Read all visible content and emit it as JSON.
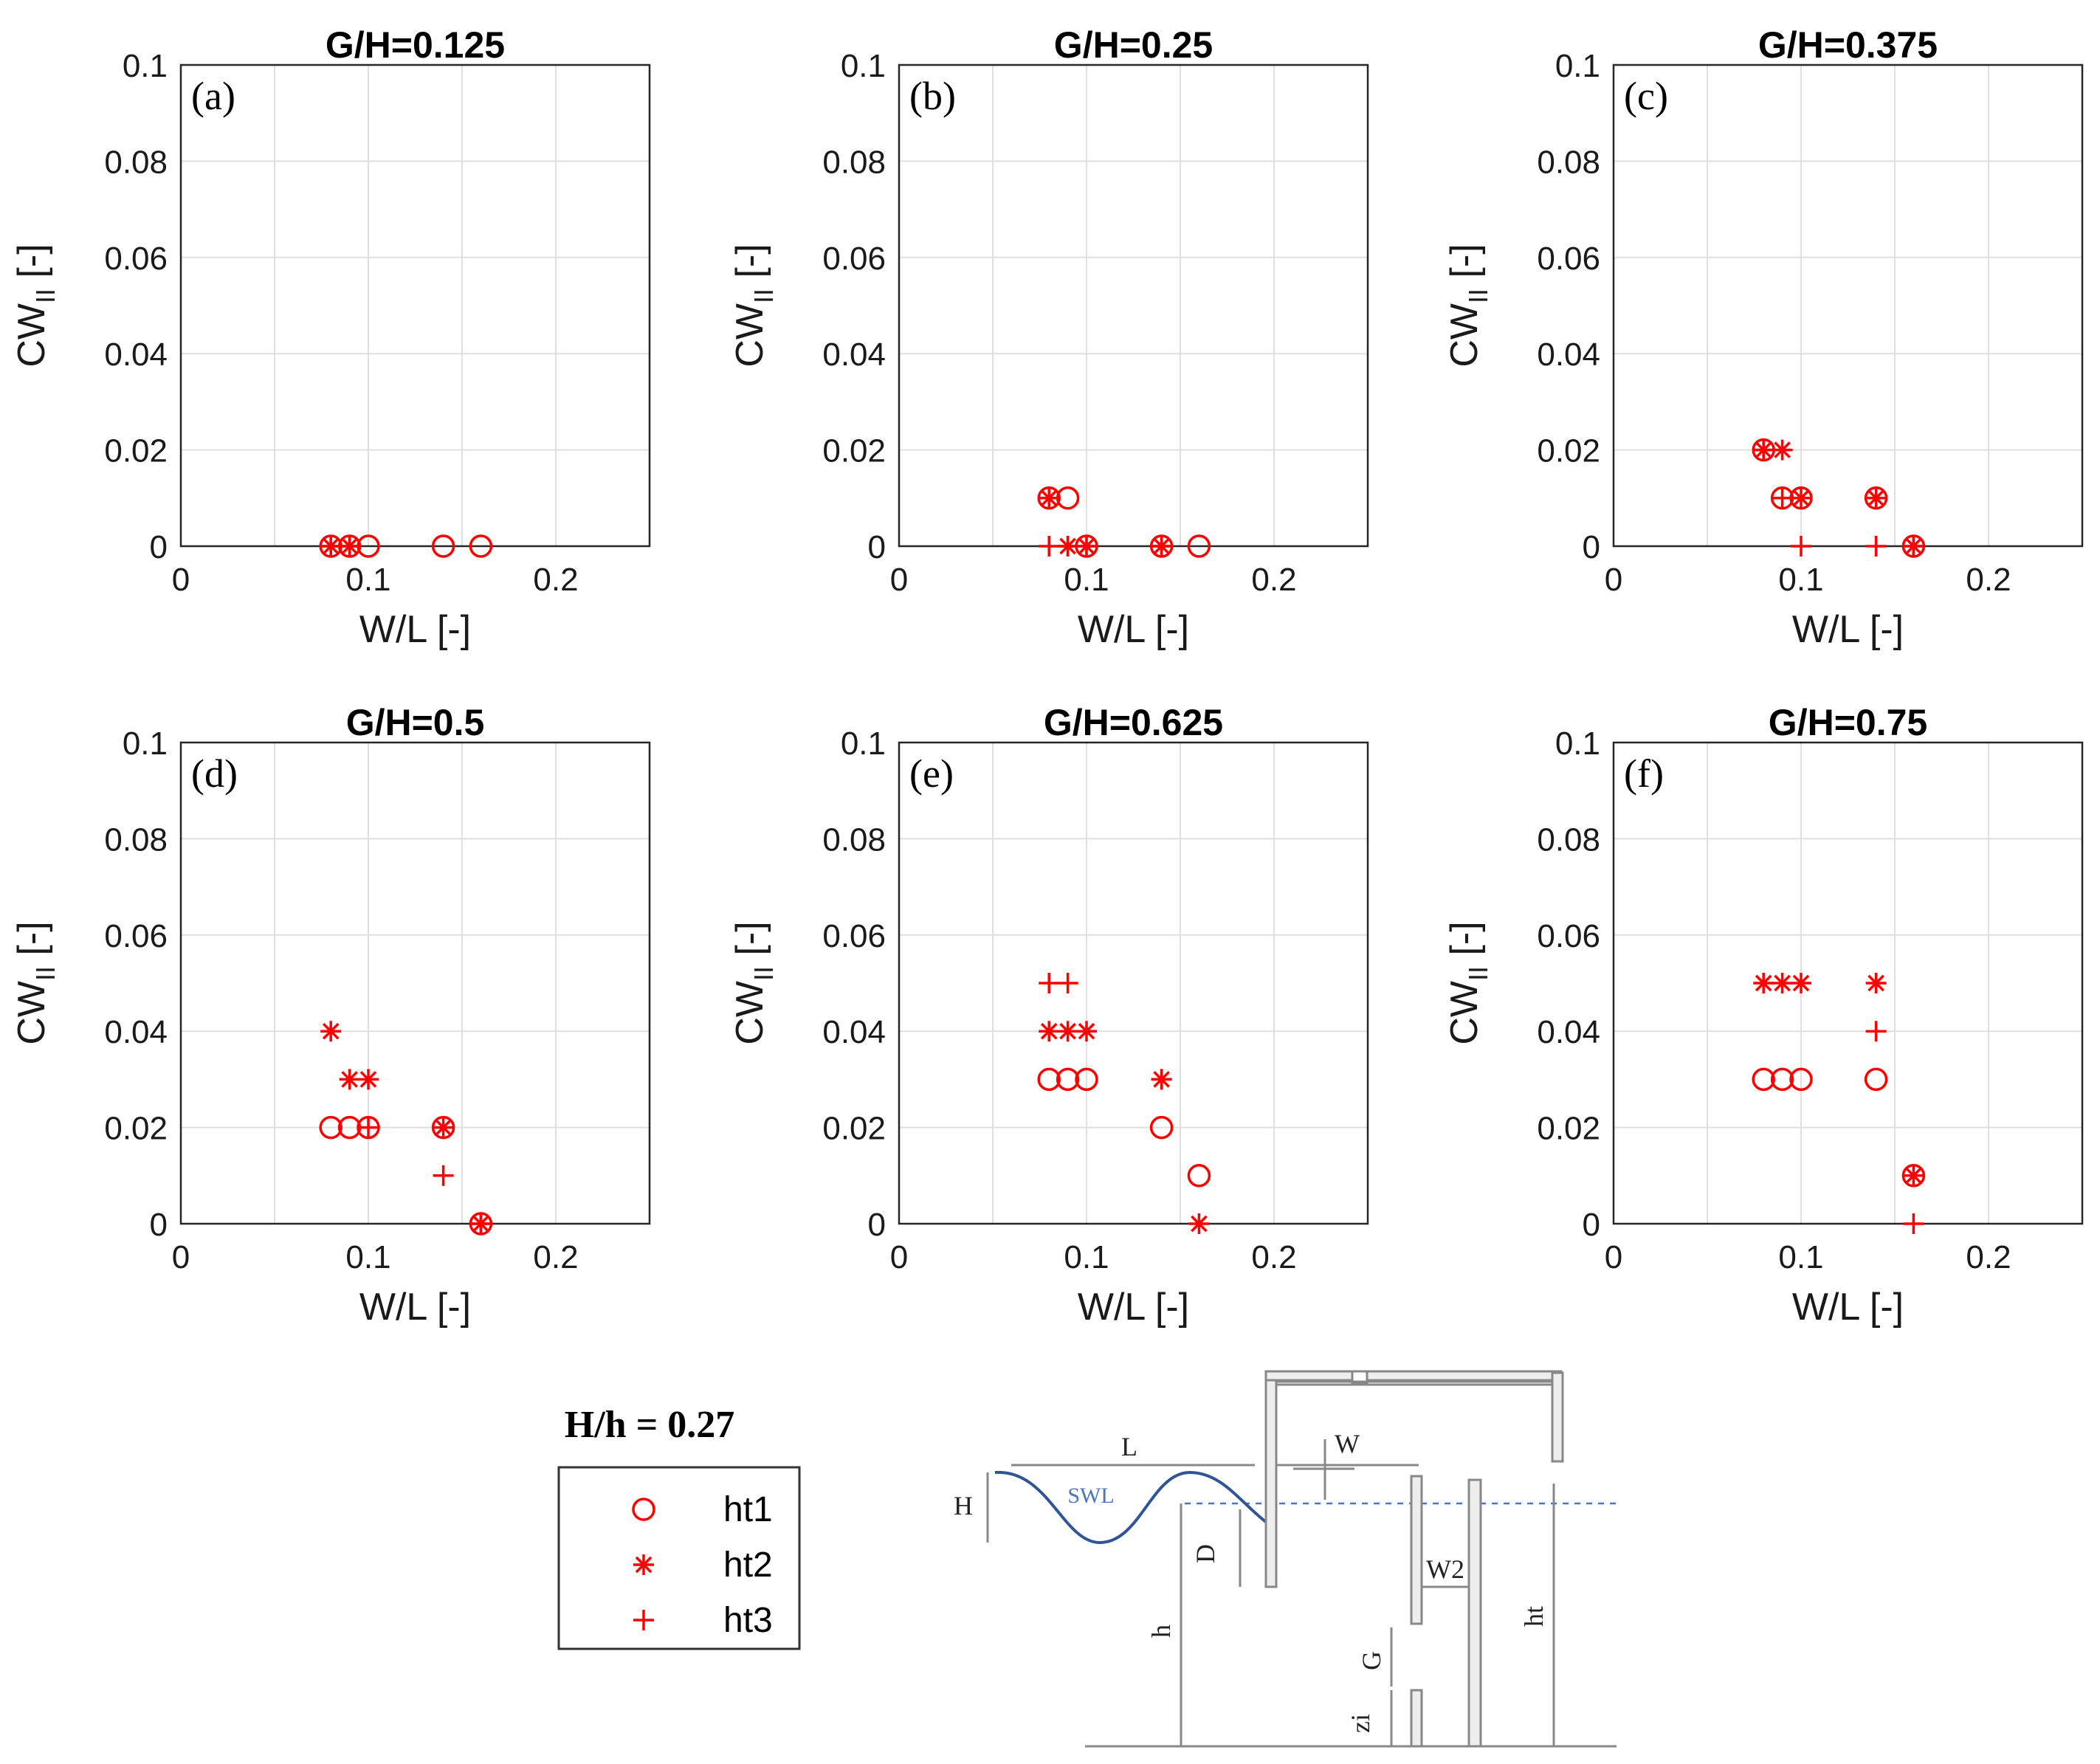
{
  "chart_data": [
    {
      "type": "scatter",
      "panel": "(a)",
      "title": "G/H=0.125",
      "xlabel": "W/L [-]",
      "ylabel": "CW_II [-]",
      "xlim": [
        0,
        0.25
      ],
      "ylim": [
        0,
        0.1
      ],
      "xticks": [
        "0",
        "0.1",
        "0.2"
      ],
      "yticks": [
        "0",
        "0.02",
        "0.04",
        "0.06",
        "0.08",
        "0.1"
      ],
      "grid": true,
      "series": [
        {
          "name": "ht1",
          "marker": "circle",
          "points": [
            [
              0.08,
              0
            ],
            [
              0.09,
              0
            ],
            [
              0.1,
              0
            ],
            [
              0.14,
              0
            ],
            [
              0.16,
              0
            ]
          ]
        },
        {
          "name": "ht2",
          "marker": "asterisk",
          "points": [
            [
              0.08,
              0
            ],
            [
              0.09,
              0
            ]
          ]
        },
        {
          "name": "ht3",
          "marker": "plus",
          "points": [
            [
              0.08,
              0
            ],
            [
              0.09,
              0
            ]
          ]
        }
      ]
    },
    {
      "type": "scatter",
      "panel": "(b)",
      "title": "G/H=0.25",
      "xlabel": "W/L [-]",
      "ylabel": "CW_II [-]",
      "xlim": [
        0,
        0.25
      ],
      "ylim": [
        0,
        0.1
      ],
      "xticks": [
        "0",
        "0.1",
        "0.2"
      ],
      "yticks": [
        "0",
        "0.02",
        "0.04",
        "0.06",
        "0.08",
        "0.1"
      ],
      "grid": true,
      "series": [
        {
          "name": "ht1",
          "marker": "circle",
          "points": [
            [
              0.08,
              0.01
            ],
            [
              0.09,
              0.01
            ],
            [
              0.1,
              0
            ],
            [
              0.14,
              0
            ],
            [
              0.16,
              0
            ]
          ]
        },
        {
          "name": "ht2",
          "marker": "asterisk",
          "points": [
            [
              0.08,
              0.01
            ],
            [
              0.09,
              0
            ],
            [
              0.1,
              0
            ],
            [
              0.14,
              0
            ]
          ]
        },
        {
          "name": "ht3",
          "marker": "plus",
          "points": [
            [
              0.08,
              0
            ],
            [
              0.09,
              0
            ],
            [
              0.1,
              0
            ],
            [
              0.14,
              0
            ]
          ]
        }
      ]
    },
    {
      "type": "scatter",
      "panel": "(c)",
      "title": "G/H=0.375",
      "xlabel": "W/L [-]",
      "ylabel": "CW_II [-]",
      "xlim": [
        0,
        0.25
      ],
      "ylim": [
        0,
        0.1
      ],
      "xticks": [
        "0",
        "0.1",
        "0.2"
      ],
      "yticks": [
        "0",
        "0.02",
        "0.04",
        "0.06",
        "0.08",
        "0.1"
      ],
      "grid": true,
      "series": [
        {
          "name": "ht1",
          "marker": "circle",
          "points": [
            [
              0.08,
              0.02
            ],
            [
              0.09,
              0.01
            ],
            [
              0.1,
              0.01
            ],
            [
              0.14,
              0.01
            ],
            [
              0.16,
              0
            ]
          ]
        },
        {
          "name": "ht2",
          "marker": "asterisk",
          "points": [
            [
              0.08,
              0.02
            ],
            [
              0.09,
              0.02
            ],
            [
              0.1,
              0.01
            ],
            [
              0.14,
              0.01
            ],
            [
              0.16,
              0
            ]
          ]
        },
        {
          "name": "ht3",
          "marker": "plus",
          "points": [
            [
              0.08,
              0.02
            ],
            [
              0.09,
              0.01
            ],
            [
              0.1,
              0
            ],
            [
              0.14,
              0
            ],
            [
              0.16,
              0
            ]
          ]
        }
      ]
    },
    {
      "type": "scatter",
      "panel": "(d)",
      "title": "G/H=0.5",
      "xlabel": "W/L [-]",
      "ylabel": "CW_II [-]",
      "xlim": [
        0,
        0.25
      ],
      "ylim": [
        0,
        0.1
      ],
      "xticks": [
        "0",
        "0.1",
        "0.2"
      ],
      "yticks": [
        "0",
        "0.02",
        "0.04",
        "0.06",
        "0.08",
        "0.1"
      ],
      "grid": true,
      "series": [
        {
          "name": "ht1",
          "marker": "circle",
          "points": [
            [
              0.08,
              0.02
            ],
            [
              0.09,
              0.02
            ],
            [
              0.1,
              0.02
            ],
            [
              0.14,
              0.02
            ],
            [
              0.16,
              0
            ]
          ]
        },
        {
          "name": "ht2",
          "marker": "asterisk",
          "points": [
            [
              0.08,
              0.04
            ],
            [
              0.09,
              0.03
            ],
            [
              0.1,
              0.03
            ],
            [
              0.14,
              0.02
            ],
            [
              0.16,
              0
            ]
          ]
        },
        {
          "name": "ht3",
          "marker": "plus",
          "points": [
            [
              0.1,
              0.02
            ],
            [
              0.14,
              0.01
            ],
            [
              0.16,
              0
            ]
          ]
        }
      ]
    },
    {
      "type": "scatter",
      "panel": "(e)",
      "title": "G/H=0.625",
      "xlabel": "W/L [-]",
      "ylabel": "CW_II [-]",
      "xlim": [
        0,
        0.25
      ],
      "ylim": [
        0,
        0.1
      ],
      "xticks": [
        "0",
        "0.1",
        "0.2"
      ],
      "yticks": [
        "0",
        "0.02",
        "0.04",
        "0.06",
        "0.08",
        "0.1"
      ],
      "grid": true,
      "series": [
        {
          "name": "ht1",
          "marker": "circle",
          "points": [
            [
              0.08,
              0.03
            ],
            [
              0.09,
              0.03
            ],
            [
              0.1,
              0.03
            ],
            [
              0.14,
              0.02
            ],
            [
              0.16,
              0.01
            ]
          ]
        },
        {
          "name": "ht2",
          "marker": "asterisk",
          "points": [
            [
              0.08,
              0.04
            ],
            [
              0.09,
              0.04
            ],
            [
              0.1,
              0.04
            ],
            [
              0.14,
              0.03
            ],
            [
              0.16,
              0
            ]
          ]
        },
        {
          "name": "ht3",
          "marker": "plus",
          "points": [
            [
              0.08,
              0.05
            ],
            [
              0.09,
              0.05
            ],
            [
              0.14,
              0.03
            ]
          ]
        }
      ]
    },
    {
      "type": "scatter",
      "panel": "(f)",
      "title": "G/H=0.75",
      "xlabel": "W/L [-]",
      "ylabel": "CW_II [-]",
      "xlim": [
        0,
        0.25
      ],
      "ylim": [
        0,
        0.1
      ],
      "xticks": [
        "0",
        "0.1",
        "0.2"
      ],
      "yticks": [
        "0",
        "0.02",
        "0.04",
        "0.06",
        "0.08",
        "0.1"
      ],
      "grid": true,
      "series": [
        {
          "name": "ht1",
          "marker": "circle",
          "points": [
            [
              0.08,
              0.03
            ],
            [
              0.09,
              0.03
            ],
            [
              0.1,
              0.03
            ],
            [
              0.14,
              0.03
            ],
            [
              0.16,
              0.01
            ]
          ]
        },
        {
          "name": "ht2",
          "marker": "asterisk",
          "points": [
            [
              0.08,
              0.05
            ],
            [
              0.09,
              0.05
            ],
            [
              0.1,
              0.05
            ],
            [
              0.14,
              0.05
            ],
            [
              0.16,
              0.01
            ]
          ]
        },
        {
          "name": "ht3",
          "marker": "plus",
          "points": [
            [
              0.14,
              0.04
            ],
            [
              0.16,
              0
            ]
          ]
        }
      ]
    }
  ],
  "legend": {
    "header": "H/h = 0.27",
    "entries": [
      {
        "label": "ht1",
        "marker": "circle"
      },
      {
        "label": "ht2",
        "marker": "asterisk"
      },
      {
        "label": "ht3",
        "marker": "plus"
      }
    ]
  },
  "diagram": {
    "labels": {
      "L": "L",
      "W": "W",
      "H": "H",
      "SWL": "SWL",
      "D": "D",
      "h": "h",
      "W2": "W2",
      "G": "G",
      "zi": "zi",
      "ht": "ht"
    }
  },
  "colors": {
    "marker": "#ff0000",
    "grid": "#dfdfdf",
    "axis": "#262626",
    "wave": "#2f5597",
    "swl": "#4a74c4"
  }
}
